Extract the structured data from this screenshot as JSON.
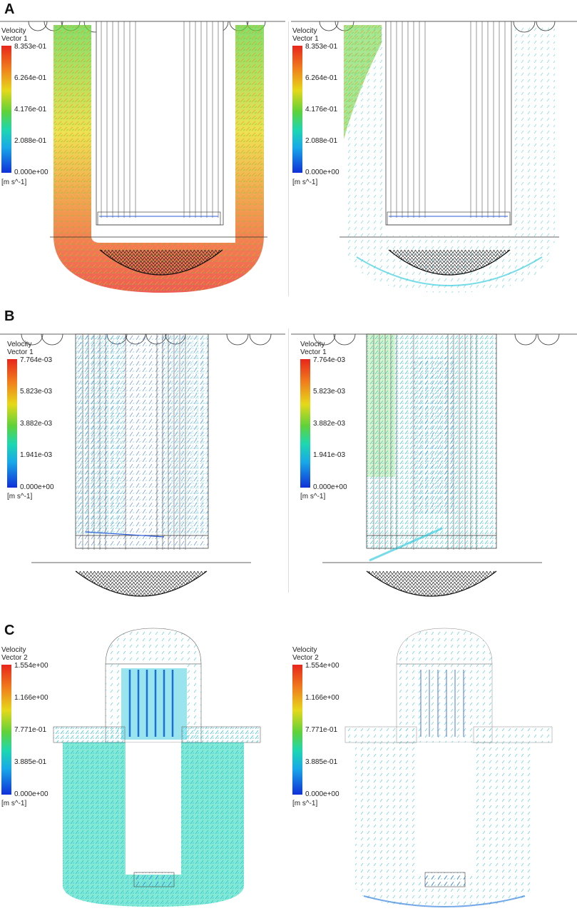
{
  "panels": [
    {
      "letter": "A",
      "legends": [
        {
          "title": "Velocity\nVector 1",
          "ticks": [
            "8.353e-01",
            "6.264e-01",
            "4.176e-01",
            "2.088e-01",
            "0.000e+00"
          ],
          "unit": "[m s^-1]"
        },
        {
          "title": "Velocity\nVector 1",
          "ticks": [
            "8.353e-01",
            "6.264e-01",
            "4.176e-01",
            "2.088e-01",
            "0.000e+00"
          ],
          "unit": "[m s^-1]"
        }
      ]
    },
    {
      "letter": "B",
      "legends": [
        {
          "title": "Velocity\nVector 1",
          "ticks": [
            "7.764e-03",
            "5.823e-03",
            "3.882e-03",
            "1.941e-03",
            "0.000e+00"
          ],
          "unit": "[m s^-1]"
        },
        {
          "title": "Velocity\nVector 1",
          "ticks": [
            "7.764e-03",
            "5.823e-03",
            "3.882e-03",
            "1.941e-03",
            "0.000e+00"
          ],
          "unit": "[m s^-1]"
        }
      ]
    },
    {
      "letter": "C",
      "legends": [
        {
          "title": "Velocity\nVector 2",
          "ticks": [
            "1.554e+00",
            "1.166e+00",
            "7.771e-01",
            "3.885e-01",
            "0.000e+00"
          ],
          "unit": "[m s^-1]"
        },
        {
          "title": "Velocity\nVector 2",
          "ticks": [
            "1.554e+00",
            "1.166e+00",
            "7.771e-01",
            "3.885e-01",
            "0.000e+00"
          ],
          "unit": "[m s^-1]"
        }
      ]
    }
  ],
  "colors": {
    "high": "#e8261c",
    "mid_high": "#e6d81a",
    "mid": "#5ed23a",
    "mid_low": "#1ed7b0",
    "low": "#1030d8",
    "structure": "#333333",
    "mesh": "#1a1a1a"
  }
}
